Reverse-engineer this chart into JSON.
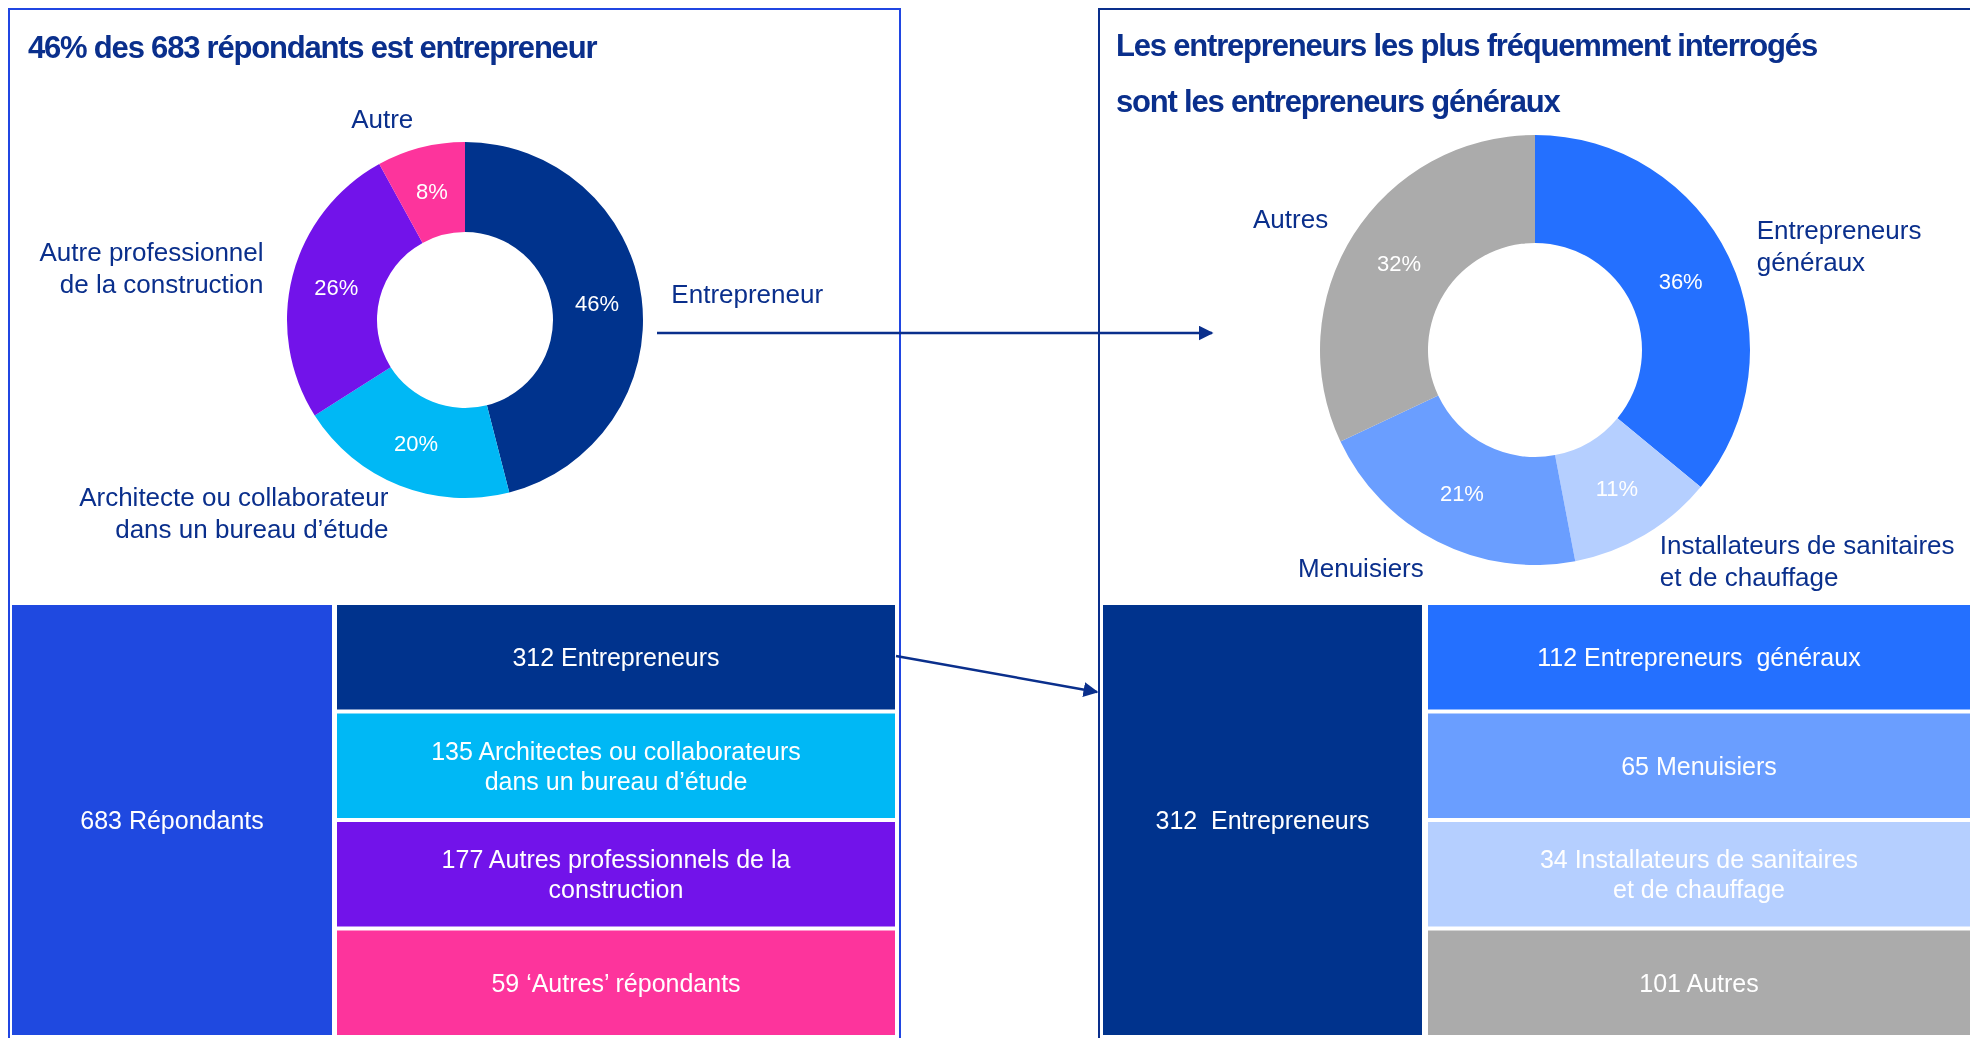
{
  "chart_data": [
    {
      "type": "donut",
      "title": "46% des 683 répondants est entrepreneur",
      "categories": [
        "Entrepreneur",
        "Architecte ou collaborateur dans un bureau d’étude",
        "Autre professionnel de la construction",
        "Autre"
      ],
      "values": [
        46,
        20,
        26,
        8
      ],
      "colors": [
        "#00338d",
        "#00b8f5",
        "#7213ea",
        "#fd349c"
      ],
      "value_labels": [
        "46%",
        "20%",
        "26%",
        "8%"
      ]
    },
    {
      "type": "other",
      "annotations": [
        "683 Répondants"
      ],
      "color": "#1f49e0",
      "categories": [
        "312 Entrepreneurs",
        "135 Architectes ou collaborateurs dans un bureau d’étude",
        "177 Autres professionnels de la construction",
        "59 ‘Autres’ répondants"
      ],
      "colors": [
        "#00338d",
        "#00b8f5",
        "#7213ea",
        "#fd349c"
      ]
    },
    {
      "type": "donut",
      "title": "Les entrepreneurs les plus fréquemment interrogés sont les entrepreneurs généraux",
      "categories": [
        "Entrepreneurs généraux",
        "Installateurs de sanitaires et de chauffage",
        "Menuisiers",
        "Autres"
      ],
      "values": [
        36,
        11,
        21,
        32
      ],
      "colors": [
        "#2470ff",
        "#b5cfff",
        "#6a9eff",
        "#ababab"
      ],
      "value_labels": [
        "36%",
        "11%",
        "21%",
        "32%"
      ]
    },
    {
      "type": "other",
      "annotations": [
        "312  Entrepreneurs"
      ],
      "color": "#00338d",
      "categories": [
        "112 Entrepreneurs  généraux",
        "65 Menuisiers",
        "34 Installateurs de sanitaires et de chauffage",
        "101 Autres"
      ],
      "colors": [
        "#2470ff",
        "#6a9eff",
        "#b5cfff",
        "#ababab"
      ]
    }
  ]
}
